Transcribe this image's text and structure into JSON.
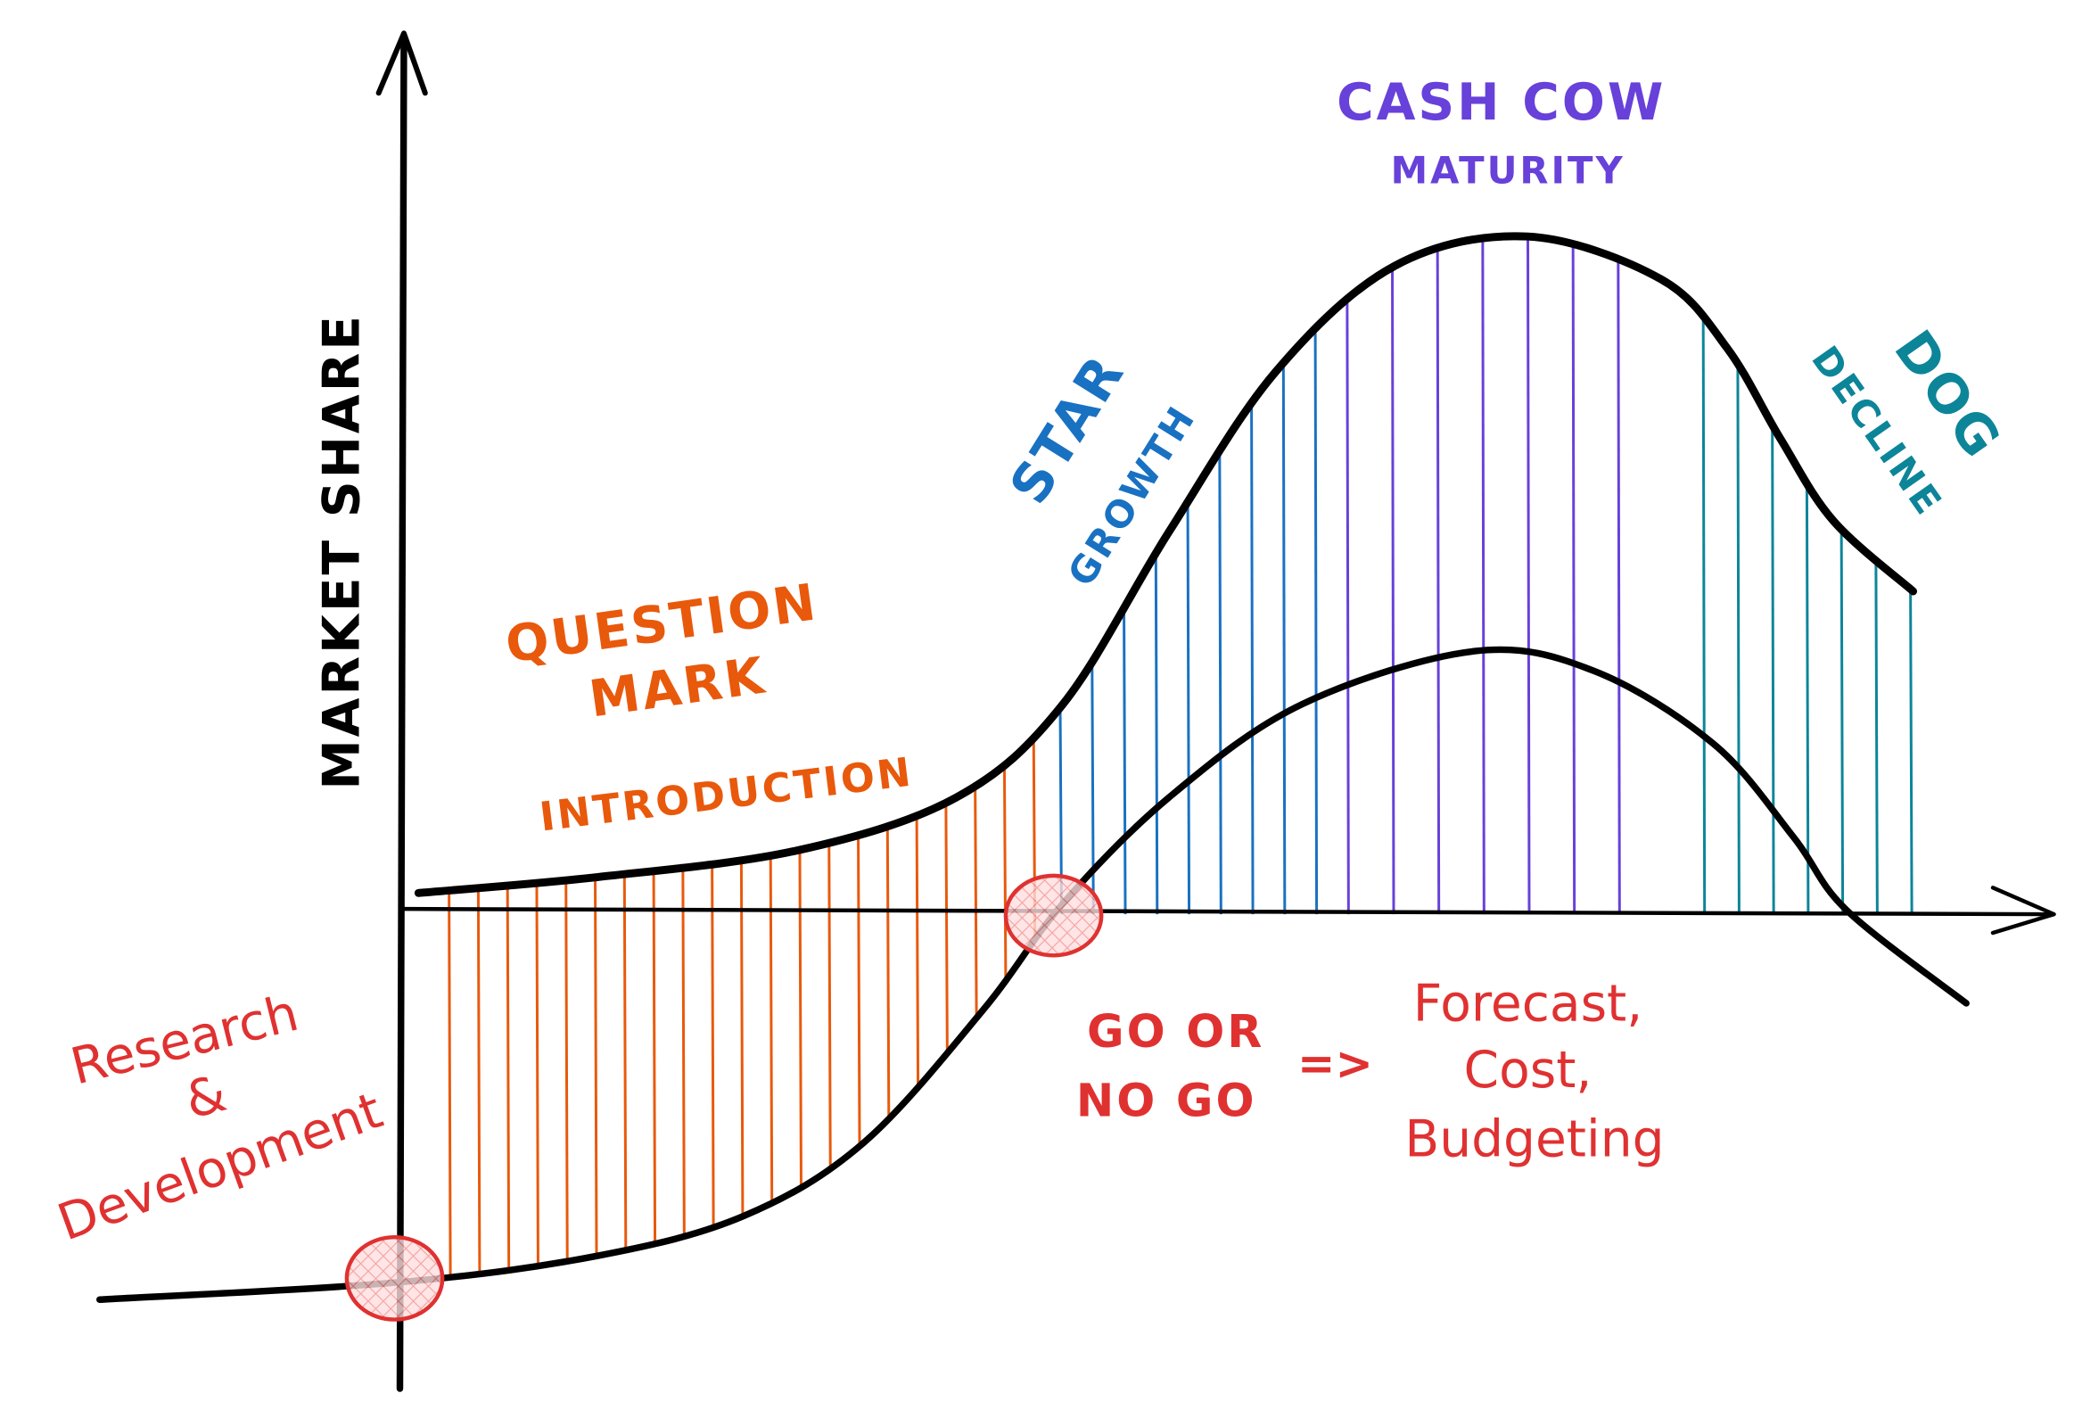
{
  "axis": {
    "y_label": "MARKET SHARE"
  },
  "colors": {
    "introduction": "#e8590c",
    "growth": "#1971c2",
    "maturity": "#6741d9",
    "decline": "#0c8599",
    "annotation": "#e03131",
    "curve": "#000000"
  },
  "stages": {
    "question_mark": {
      "title_line1": "QUESTION",
      "title_line2": "MARK",
      "phase": "INTRODUCTION"
    },
    "star": {
      "title": "STAR",
      "phase": "GROWTH"
    },
    "cash_cow": {
      "title": "CASH COW",
      "phase": "MATURITY"
    },
    "dog": {
      "title": "DOG",
      "phase": "DECLINE"
    }
  },
  "annotations": {
    "rnd_line1": "Research",
    "rnd_line2": "&",
    "rnd_line3": "Development",
    "go_line1": "GO OR",
    "go_line2": "NO GO",
    "arrow": "=>",
    "plan_line1": "Forecast,",
    "plan_line2": "Cost,",
    "plan_line3": "Budgeting"
  }
}
